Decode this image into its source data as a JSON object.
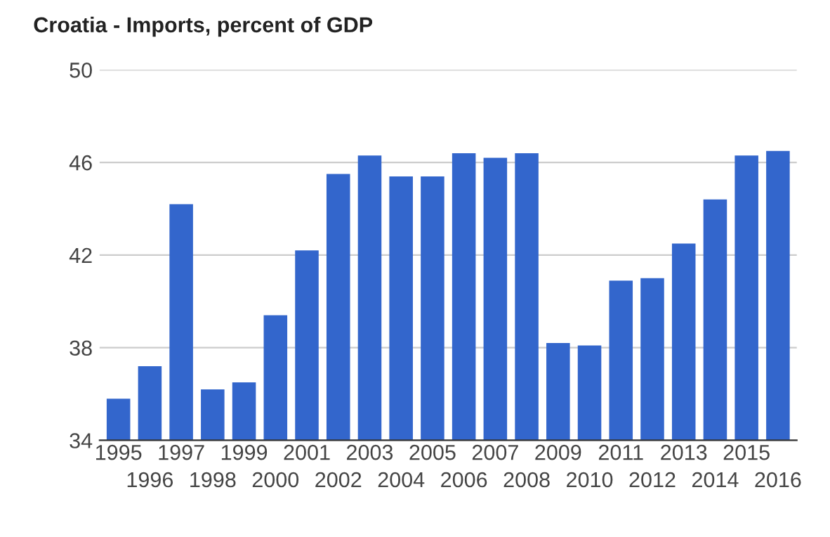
{
  "chart_data": {
    "type": "bar",
    "title": "Croatia - Imports, percent of GDP",
    "categories": [
      "1995",
      "1996",
      "1997",
      "1998",
      "1999",
      "2000",
      "2001",
      "2002",
      "2003",
      "2004",
      "2005",
      "2006",
      "2007",
      "2008",
      "2009",
      "2010",
      "2011",
      "2012",
      "2013",
      "2014",
      "2015",
      "2016"
    ],
    "values": [
      35.8,
      37.2,
      44.2,
      36.2,
      36.5,
      39.4,
      42.2,
      45.5,
      46.3,
      45.4,
      45.4,
      46.4,
      46.2,
      46.4,
      38.2,
      38.1,
      40.9,
      41.0,
      42.5,
      44.4,
      46.3,
      46.5
    ],
    "color": "#3366cc",
    "ylim": [
      34,
      50
    ],
    "yticks": [
      34,
      38,
      42,
      46,
      50
    ],
    "grid": "y",
    "legend": false
  }
}
